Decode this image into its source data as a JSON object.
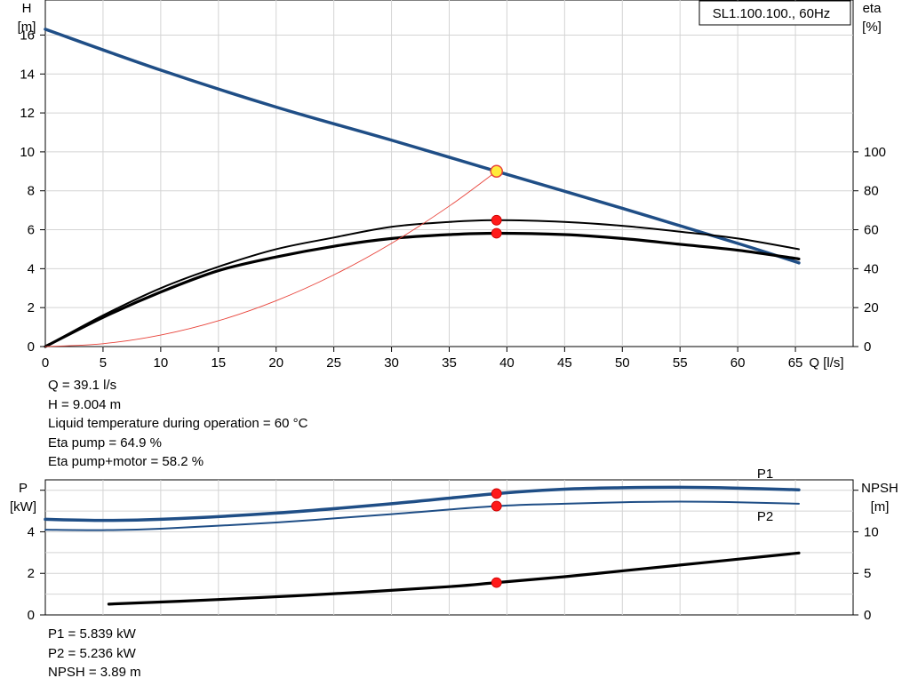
{
  "chart_data": [
    {
      "type": "line",
      "name": "performance",
      "title_box": "SL1.100.100., 60Hz",
      "x_axis": {
        "label": "Q [l/s]",
        "range": [
          0,
          70
        ],
        "ticks": [
          0,
          5,
          10,
          15,
          20,
          25,
          30,
          35,
          40,
          45,
          50,
          55,
          60,
          65
        ]
      },
      "y_left": {
        "label_lines": [
          "H",
          "[m]"
        ],
        "range": [
          0,
          17.8
        ],
        "ticks": [
          0,
          2,
          4,
          6,
          8,
          10,
          12,
          14,
          16
        ]
      },
      "y_right": {
        "label_lines": [
          "eta",
          "[%]"
        ],
        "ticks": [
          0,
          20,
          40,
          60,
          80,
          100
        ]
      },
      "grid": true,
      "series": [
        {
          "key": "H",
          "axis": "left",
          "color": "#1f4e86",
          "width": 3.5,
          "x": [
            0,
            10,
            20,
            30,
            39.1,
            50,
            60,
            65.3
          ],
          "y": [
            16.3,
            14.2,
            12.3,
            10.6,
            9.0,
            7.1,
            5.3,
            4.3
          ]
        },
        {
          "key": "eta_pump",
          "axis": "right",
          "color": "#000000",
          "width": 2,
          "x": [
            0,
            5,
            10,
            15,
            20,
            25,
            30,
            35,
            39.1,
            45,
            50,
            55,
            60,
            65.3
          ],
          "y": [
            0,
            16,
            30,
            41,
            50,
            56,
            61.5,
            64,
            64.9,
            64,
            62,
            59,
            55.5,
            50
          ]
        },
        {
          "key": "eta_pump_motor",
          "axis": "right",
          "color": "#000000",
          "width": 3.2,
          "x": [
            0,
            5,
            10,
            15,
            20,
            25,
            30,
            35,
            39.1,
            45,
            50,
            55,
            60,
            65.3
          ],
          "y": [
            0,
            15,
            28,
            39,
            46,
            51.5,
            55.5,
            57.5,
            58.2,
            57.5,
            55.5,
            52.5,
            49.5,
            45
          ]
        },
        {
          "key": "system",
          "axis": "left",
          "color": "#e8433a",
          "width": 0.9,
          "x": [
            0,
            5,
            10,
            15,
            20,
            25,
            30,
            35,
            39.1
          ],
          "y": [
            0,
            0.147,
            0.589,
            1.325,
            2.355,
            3.68,
            5.3,
            7.214,
            9.004
          ]
        }
      ],
      "operating_points": [
        {
          "x": 39.1,
          "y": 9.004,
          "axis": "left",
          "style": "yellow"
        },
        {
          "x": 39.1,
          "y": 64.9,
          "axis": "right",
          "style": "red"
        },
        {
          "x": 39.1,
          "y": 58.2,
          "axis": "right",
          "style": "red"
        }
      ]
    },
    {
      "type": "line",
      "name": "power_npsh",
      "x_axis": {
        "range": [
          0,
          70
        ]
      },
      "y_left": {
        "label_lines": [
          "P",
          "[kW]"
        ],
        "range": [
          0,
          6.5
        ],
        "ticks": [
          0,
          2,
          4
        ]
      },
      "y_right": {
        "label_lines": [
          "NPSH",
          "[m]"
        ],
        "range": [
          0,
          16.25
        ],
        "ticks": [
          0,
          5,
          10
        ]
      },
      "grid": true,
      "series": [
        {
          "key": "P1",
          "name": "P1",
          "axis": "left",
          "color": "#1f4e86",
          "width": 3.5,
          "x": [
            0,
            5,
            10,
            20,
            30,
            39.1,
            45,
            50,
            55,
            60,
            65.3
          ],
          "y": [
            4.6,
            4.55,
            4.6,
            4.9,
            5.35,
            5.839,
            6.05,
            6.12,
            6.14,
            6.1,
            6.02
          ]
        },
        {
          "key": "P2",
          "name": "P2",
          "axis": "left",
          "color": "#1f4e86",
          "width": 2,
          "x": [
            0,
            5,
            10,
            20,
            30,
            39.1,
            45,
            50,
            55,
            60,
            65.3
          ],
          "y": [
            4.1,
            4.08,
            4.15,
            4.45,
            4.85,
            5.236,
            5.35,
            5.42,
            5.45,
            5.42,
            5.35
          ]
        },
        {
          "key": "NPSH",
          "axis": "right",
          "color": "#000000",
          "width": 3.2,
          "x": [
            5.5,
            15,
            25,
            35,
            39.1,
            45,
            50,
            55,
            60,
            65.3
          ],
          "y": [
            1.3,
            1.85,
            2.55,
            3.4,
            3.89,
            4.6,
            5.3,
            6.0,
            6.7,
            7.45
          ]
        }
      ],
      "operating_points": [
        {
          "x": 39.1,
          "y": 5.839,
          "axis": "left",
          "style": "red"
        },
        {
          "x": 39.1,
          "y": 5.236,
          "axis": "left",
          "style": "red"
        },
        {
          "x": 39.1,
          "y": 3.89,
          "axis": "right",
          "style": "red"
        }
      ]
    }
  ],
  "operating_info": [
    "Q = 39.1 l/s",
    "H = 9.004 m",
    "Liquid temperature during operation = 60 °C",
    "Eta pump = 64.9 %",
    "Eta pump+motor = 58.2 %"
  ],
  "power_info": [
    "P1 = 5.839 kW",
    "P2 = 5.236 kW",
    "NPSH = 3.89 m"
  ]
}
